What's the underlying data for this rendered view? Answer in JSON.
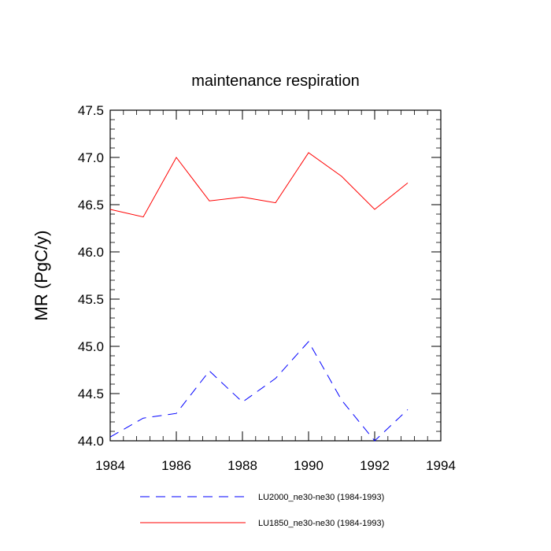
{
  "chart_data": {
    "type": "line",
    "title": "maintenance respiration",
    "xlabel": "",
    "ylabel": "MR  (PgC/y)",
    "xlim": [
      1984,
      1994
    ],
    "ylim": [
      44.0,
      47.5
    ],
    "x_ticks": [
      1984,
      1986,
      1988,
      1990,
      1992,
      1994
    ],
    "x_tick_labels": [
      "1984",
      "1986",
      "1988",
      "1990",
      "1992",
      "1994"
    ],
    "y_ticks": [
      44.0,
      44.5,
      45.0,
      45.5,
      46.0,
      46.5,
      47.0,
      47.5
    ],
    "y_tick_labels": [
      "44.0",
      "44.5",
      "45.0",
      "45.5",
      "46.0",
      "46.5",
      "47.0",
      "47.5"
    ],
    "x": [
      1984,
      1985,
      1986,
      1987,
      1988,
      1989,
      1990,
      1991,
      1992,
      1993
    ],
    "series": [
      {
        "name": "LU2000_ne30-ne30 (1984-1993)",
        "color": "#0000ff",
        "dash": "dashed",
        "values": [
          44.04,
          44.24,
          44.29,
          44.74,
          44.41,
          44.66,
          45.05,
          44.43,
          44.0,
          44.33
        ]
      },
      {
        "name": "LU1850_ne30-ne30 (1984-1993)",
        "color": "#ff0000",
        "dash": "solid",
        "values": [
          46.45,
          46.37,
          47.0,
          46.54,
          46.58,
          46.52,
          47.05,
          46.8,
          46.45,
          46.73
        ]
      }
    ],
    "legend_position": "bottom",
    "grid": false
  }
}
